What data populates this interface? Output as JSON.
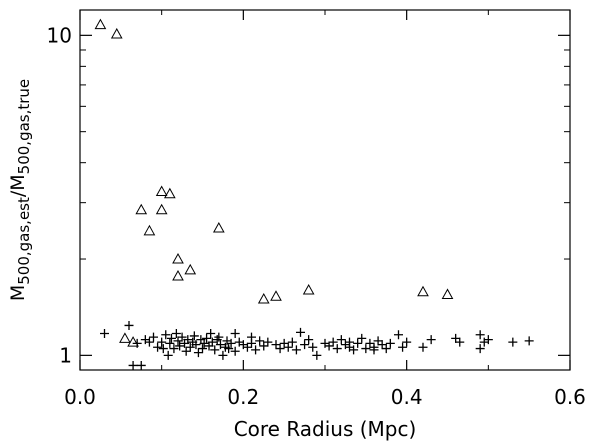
{
  "chart_data": {
    "type": "scatter",
    "xlabel": "Core Radius (Mpc)",
    "ylabel": {
      "prefix1": "M",
      "sub1": "500,gas,est",
      "sep": "/",
      "prefix2": "M",
      "sub2": "500,gas,true"
    },
    "xlim": [
      0.0,
      0.6
    ],
    "ylim": [
      0.9,
      12.0
    ],
    "yscale": "log",
    "grid": false,
    "x_ticks": [
      "0.0",
      "0.2",
      "0.4",
      "0.6"
    ],
    "x_tick_values": [
      0.0,
      0.2,
      0.4,
      0.6
    ],
    "y_major_ticks": [
      "1",
      "10"
    ],
    "y_major_values": [
      1,
      10
    ],
    "y_minor_values": [
      2,
      3,
      4,
      5,
      6,
      7,
      8,
      9
    ],
    "series": [
      {
        "marker": "triangle",
        "points": [
          [
            0.025,
            10.8
          ],
          [
            0.045,
            10.1
          ],
          [
            0.075,
            2.85
          ],
          [
            0.085,
            2.45
          ],
          [
            0.1,
            3.25
          ],
          [
            0.1,
            2.85
          ],
          [
            0.11,
            3.2
          ],
          [
            0.12,
            2.0
          ],
          [
            0.12,
            1.77
          ],
          [
            0.135,
            1.85
          ],
          [
            0.17,
            2.5
          ],
          [
            0.225,
            1.5
          ],
          [
            0.24,
            1.53
          ],
          [
            0.28,
            1.6
          ],
          [
            0.42,
            1.58
          ],
          [
            0.45,
            1.55
          ],
          [
            0.055,
            1.13
          ],
          [
            0.065,
            1.1
          ]
        ]
      },
      {
        "marker": "plus",
        "points": [
          [
            0.03,
            1.17
          ],
          [
            0.06,
            1.24
          ],
          [
            0.065,
            0.93
          ],
          [
            0.075,
            0.93
          ],
          [
            0.07,
            1.09
          ],
          [
            0.08,
            1.12
          ],
          [
            0.085,
            1.1
          ],
          [
            0.09,
            1.14
          ],
          [
            0.095,
            1.06
          ],
          [
            0.1,
            1.1
          ],
          [
            0.102,
            1.05
          ],
          [
            0.105,
            1.16
          ],
          [
            0.108,
            1.0
          ],
          [
            0.11,
            1.09
          ],
          [
            0.112,
            1.13
          ],
          [
            0.115,
            1.05
          ],
          [
            0.118,
            1.17
          ],
          [
            0.12,
            1.11
          ],
          [
            0.122,
            1.07
          ],
          [
            0.125,
            1.14
          ],
          [
            0.128,
            1.09
          ],
          [
            0.13,
            1.03
          ],
          [
            0.132,
            1.12
          ],
          [
            0.135,
            1.06
          ],
          [
            0.138,
            1.1
          ],
          [
            0.14,
            1.15
          ],
          [
            0.142,
            1.08
          ],
          [
            0.145,
            1.02
          ],
          [
            0.148,
            1.12
          ],
          [
            0.15,
            1.05
          ],
          [
            0.152,
            1.09
          ],
          [
            0.155,
            1.13
          ],
          [
            0.158,
            1.07
          ],
          [
            0.16,
            1.17
          ],
          [
            0.162,
            1.1
          ],
          [
            0.165,
            1.04
          ],
          [
            0.168,
            1.12
          ],
          [
            0.17,
            1.14
          ],
          [
            0.172,
            1.08
          ],
          [
            0.175,
            1.0
          ],
          [
            0.178,
            1.06
          ],
          [
            0.18,
            1.11
          ],
          [
            0.182,
            1.05
          ],
          [
            0.185,
            1.09
          ],
          [
            0.19,
            1.03
          ],
          [
            0.195,
            1.1
          ],
          [
            0.2,
            1.08
          ],
          [
            0.205,
            1.06
          ],
          [
            0.21,
            1.09
          ],
          [
            0.215,
            1.04
          ],
          [
            0.22,
            1.11
          ],
          [
            0.225,
            1.07
          ],
          [
            0.23,
            1.1
          ],
          [
            0.24,
            1.08
          ],
          [
            0.245,
            1.05
          ],
          [
            0.25,
            1.09
          ],
          [
            0.255,
            1.06
          ],
          [
            0.26,
            1.1
          ],
          [
            0.265,
            1.04
          ],
          [
            0.27,
            1.18
          ],
          [
            0.275,
            1.08
          ],
          [
            0.285,
            1.06
          ],
          [
            0.29,
            1.0
          ],
          [
            0.3,
            1.09
          ],
          [
            0.305,
            1.07
          ],
          [
            0.31,
            1.1
          ],
          [
            0.315,
            1.05
          ],
          [
            0.32,
            1.12
          ],
          [
            0.325,
            1.08
          ],
          [
            0.33,
            1.06
          ],
          [
            0.335,
            1.04
          ],
          [
            0.34,
            1.09
          ],
          [
            0.345,
            1.13
          ],
          [
            0.35,
            1.05
          ],
          [
            0.355,
            1.09
          ],
          [
            0.36,
            1.06
          ],
          [
            0.365,
            1.11
          ],
          [
            0.37,
            1.08
          ],
          [
            0.375,
            1.05
          ],
          [
            0.38,
            1.09
          ],
          [
            0.39,
            1.16
          ],
          [
            0.395,
            1.06
          ],
          [
            0.4,
            1.1
          ],
          [
            0.42,
            1.06
          ],
          [
            0.43,
            1.12
          ],
          [
            0.46,
            1.13
          ],
          [
            0.465,
            1.1
          ],
          [
            0.49,
            1.16
          ],
          [
            0.49,
            1.05
          ],
          [
            0.495,
            1.1
          ],
          [
            0.5,
            1.12
          ],
          [
            0.53,
            1.1
          ],
          [
            0.55,
            1.11
          ],
          [
            0.19,
            1.17
          ],
          [
            0.21,
            1.14
          ],
          [
            0.28,
            1.12
          ],
          [
            0.33,
            1.1
          ],
          [
            0.36,
            1.04
          ]
        ]
      }
    ]
  }
}
